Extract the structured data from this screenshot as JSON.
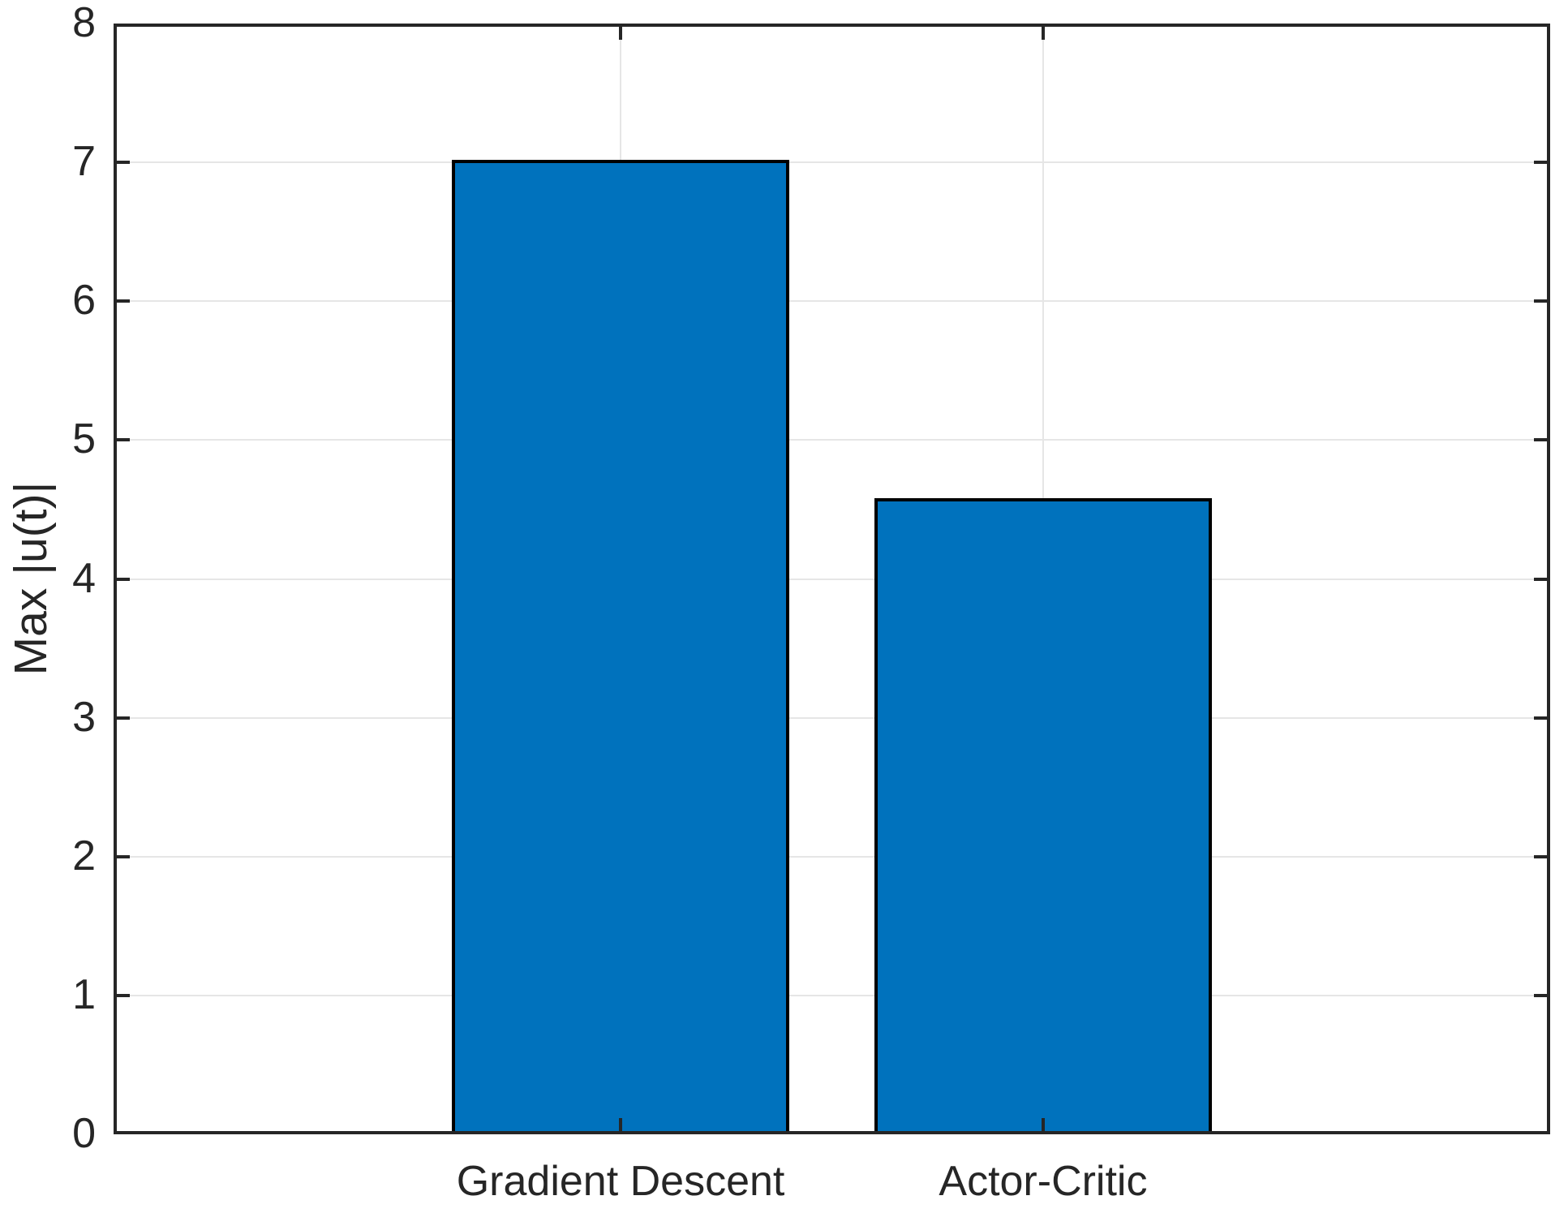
{
  "chart_data": {
    "type": "bar",
    "categories": [
      "Gradient Descent",
      "Actor-Critic"
    ],
    "values": [
      7.02,
      4.58
    ],
    "title": "",
    "xlabel": "",
    "ylabel": "Max |u(t)|",
    "ylim": [
      0,
      8
    ],
    "yticks": [
      0,
      1,
      2,
      3,
      4,
      5,
      6,
      7,
      8
    ],
    "grid": "on",
    "legend": "none",
    "bar_fill_color": "#0072BD",
    "bar_edge_color": "#000000",
    "axis_color": "#262626",
    "grid_color": "#E6E6E6",
    "background_color": "#FFFFFF"
  }
}
